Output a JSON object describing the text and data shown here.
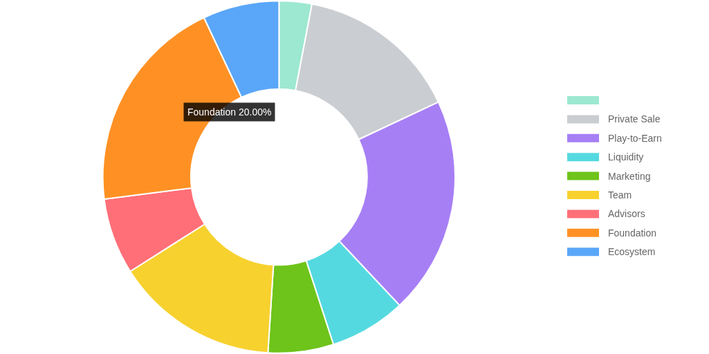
{
  "chart_data": {
    "type": "donut",
    "categories": [
      null,
      "Private Sale",
      "Play-to-Earn",
      "Liquidity",
      "Marketing",
      "Team",
      "Advisors",
      "Foundation",
      "Ecosystem"
    ],
    "values": [
      3,
      15,
      20,
      7,
      6,
      15,
      7,
      20,
      7
    ],
    "colors": [
      "#9de8d0",
      "#cacdd1",
      "#a77ff5",
      "#55d9e0",
      "#6ec41a",
      "#f7d12e",
      "#ff6f78",
      "#ff9124",
      "#5aa6f8"
    ],
    "legend": "right",
    "annotations": [
      "Foundation 20.00%"
    ]
  }
}
